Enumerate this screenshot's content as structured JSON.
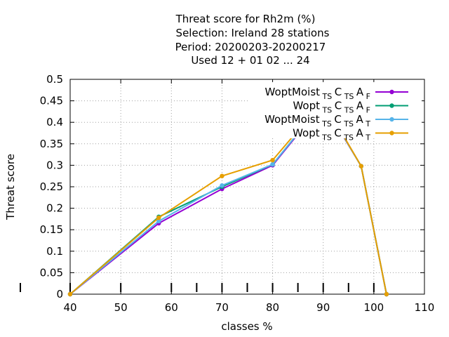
{
  "chart_data": {
    "type": "line",
    "title_lines": [
      "Threat score  for Rh2m (%)",
      "Selection: Ireland      28 stations",
      "Period: 20200203-20200217",
      "Used  12 + 01 02 ... 24"
    ],
    "xlabel": "classes %",
    "ylabel": "Threat score",
    "xlim": [
      40,
      110
    ],
    "ylim": [
      0,
      0.5
    ],
    "x_ticks": [
      "40",
      "50",
      "60",
      "70",
      "80",
      "90",
      "100",
      "110"
    ],
    "x_tick_values": [
      40,
      50,
      60,
      70,
      80,
      90,
      100,
      110
    ],
    "y_ticks": [
      "0",
      "0.05",
      "0.1",
      "0.15",
      "0.2",
      "0.25",
      "0.3",
      "0.35",
      "0.4",
      "0.45",
      "0.5"
    ],
    "y_tick_values": [
      0,
      0.05,
      0.1,
      0.15,
      0.2,
      0.25,
      0.3,
      0.35,
      0.4,
      0.45,
      0.5
    ],
    "class_markers": [
      40,
      50,
      60,
      65,
      70,
      75,
      80,
      85,
      90,
      95,
      100
    ],
    "grid": true,
    "legend_position": "top-right",
    "series": [
      {
        "name": "WoptMoist",
        "name_sub": [
          "TS",
          "C",
          "TS",
          "A",
          "F"
        ],
        "color": "#9400d3",
        "x": [
          40,
          57.5,
          70,
          80,
          90,
          97.5,
          102.5
        ],
        "y": [
          0,
          0.165,
          0.245,
          0.3,
          0.445,
          0.298,
          0
        ]
      },
      {
        "name": "Wopt",
        "name_sub": [
          "TS",
          "C",
          "TS",
          "A",
          "F"
        ],
        "color": "#009e73",
        "x": [
          40,
          57.5,
          70,
          80,
          90,
          97.5,
          102.5
        ],
        "y": [
          0,
          0.18,
          0.25,
          0.302,
          0.447,
          0.298,
          0
        ]
      },
      {
        "name": "WoptMoist",
        "name_sub": [
          "TS",
          "C",
          "TS",
          "A",
          "T"
        ],
        "color": "#56b4e9",
        "x": [
          40,
          57.5,
          70,
          80,
          90,
          97.5,
          102.5
        ],
        "y": [
          0,
          0.17,
          0.253,
          0.302,
          0.447,
          0.298,
          0
        ]
      },
      {
        "name": "Wopt",
        "name_sub": [
          "TS",
          "C",
          "TS",
          "A",
          "T"
        ],
        "color": "#e69f00",
        "x": [
          40,
          57.5,
          70,
          80,
          90,
          97.5,
          102.5
        ],
        "y": [
          0,
          0.178,
          0.275,
          0.312,
          0.45,
          0.298,
          0
        ]
      }
    ]
  }
}
